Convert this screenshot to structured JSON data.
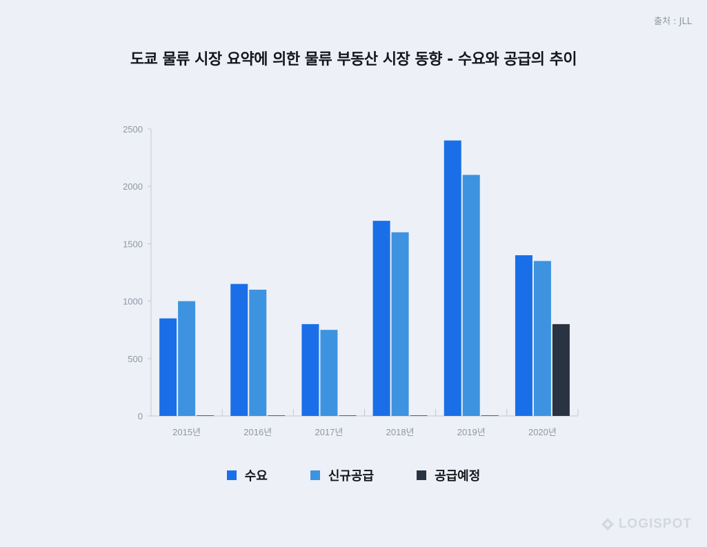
{
  "source": "출처 : JLL",
  "logo_text": "LOGISPOT",
  "colors": {
    "background": "#edf0f7",
    "demand": "#1a6fe8",
    "new_supply": "#3d93e0",
    "planned_supply": "#2a3342",
    "axis": "#c3c7cf",
    "tick_text": "#8f96a3"
  },
  "chart_data": {
    "type": "bar",
    "title": "도쿄 물류 시장 요약에 의한 물류 부동산 시장 동향 - 수요와 공급의 추이",
    "xlabel": "",
    "ylabel": "",
    "categories": [
      "2015년",
      "2016년",
      "2017년",
      "2018년",
      "2019년",
      "2020년"
    ],
    "series": [
      {
        "name": "수요",
        "values": [
          850,
          1150,
          800,
          1700,
          2400,
          1400
        ]
      },
      {
        "name": "신규공급",
        "values": [
          1000,
          1100,
          750,
          1600,
          2100,
          1350
        ]
      },
      {
        "name": "공급예정",
        "values": [
          0,
          0,
          0,
          0,
          0,
          800
        ]
      }
    ],
    "ylim": [
      0,
      2500
    ],
    "yticks": [
      "0",
      "500",
      "1000",
      "1500",
      "2000",
      "2500"
    ],
    "grid": false,
    "legend_position": "bottom-center"
  }
}
